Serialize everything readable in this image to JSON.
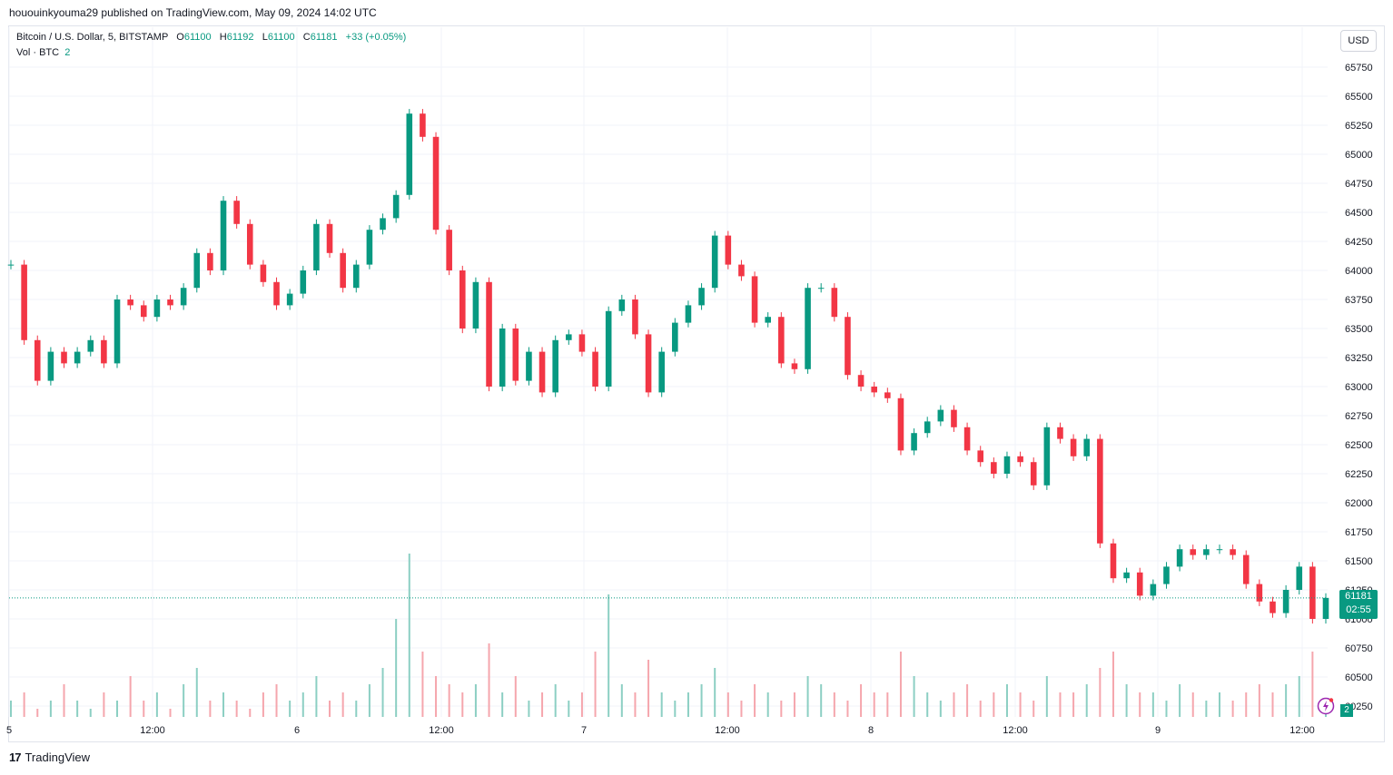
{
  "caption": "hououinkyouma29 published on TradingView.com, May 09, 2024 14:02 UTC",
  "legend": {
    "symbol": "Bitcoin / U.S. Dollar, 5, BITSTAMP",
    "o_label": "O",
    "o_value": "61100",
    "h_label": "H",
    "h_value": "61192",
    "l_label": "L",
    "l_value": "61100",
    "c_label": "C",
    "c_value": "61181",
    "change": "+33 (+0.05%)",
    "vol_label": "Vol · BTC",
    "vol_value": "2"
  },
  "currency_button": "USD",
  "last_price_tag": {
    "price": "61181",
    "countdown": "02:55"
  },
  "volume_tag": "2",
  "brand": {
    "logo": "17",
    "name": "TradingView"
  },
  "colors": {
    "up": "#089981",
    "down": "#f23645",
    "grid": "#f0f3fa",
    "text": "#131722"
  },
  "chart_data": {
    "type": "line",
    "y_ticks": [
      60250,
      60500,
      60750,
      61000,
      61250,
      61500,
      61750,
      62000,
      62250,
      62500,
      62750,
      63000,
      63250,
      63500,
      63750,
      64000,
      64250,
      64500,
      64750,
      65000,
      65250,
      65500,
      65750
    ],
    "y_tick_labels": [
      "60250",
      "60500",
      "60750",
      "61000",
      "61250",
      "61500",
      "61750",
      "62000",
      "62250",
      "62500",
      "62750",
      "63000",
      "63250",
      "63500",
      "63750",
      "64000",
      "64250",
      "64500",
      "64750",
      "65000",
      "65250",
      "65500",
      "65750"
    ],
    "x_tick_labels": [
      "5",
      "12:00",
      "6",
      "12:00",
      "7",
      "12:00",
      "8",
      "12:00",
      "9",
      "12:00"
    ],
    "ylim": [
      60150,
      65850
    ],
    "last_price": 61181,
    "series": [
      {
        "values": [
          64050,
          63400,
          63050,
          63300,
          63200,
          63300,
          63400,
          63200,
          63750,
          63700,
          63600,
          63750,
          63700,
          63850,
          64150,
          64000,
          64600,
          64400,
          64050,
          63900,
          63700,
          63800,
          64000,
          64400,
          64150,
          63850,
          64050,
          64350,
          64450,
          64650,
          65350,
          65150,
          64350,
          64000,
          63500,
          63900,
          63000,
          63500,
          63050,
          63300,
          62950,
          63400,
          63450,
          63300,
          63000,
          63650,
          63750,
          63450,
          62950,
          63300,
          63550,
          63700,
          63850,
          64300,
          64050,
          63950,
          63550,
          63600,
          63200,
          63150,
          63850,
          63850,
          63600,
          63100,
          63000,
          62950,
          62900,
          62450,
          62600,
          62700,
          62800,
          62650,
          62450,
          62350,
          62250,
          62400,
          62350,
          62150,
          62650,
          62550,
          62400,
          62550,
          61650,
          61350,
          61400,
          61200,
          61300,
          61450,
          61600,
          61550,
          61600,
          61600,
          61550,
          61300,
          61150,
          61050,
          61250,
          61450,
          61000,
          61181
        ]
      }
    ],
    "volume": [
      2,
      3,
      1,
      2,
      4,
      2,
      1,
      3,
      2,
      5,
      2,
      3,
      1,
      4,
      6,
      2,
      3,
      2,
      1,
      3,
      4,
      2,
      3,
      5,
      2,
      3,
      2,
      4,
      6,
      12,
      20,
      8,
      5,
      4,
      3,
      4,
      9,
      3,
      5,
      2,
      3,
      4,
      2,
      3,
      8,
      15,
      4,
      3,
      7,
      3,
      2,
      3,
      4,
      6,
      3,
      2,
      4,
      3,
      2,
      3,
      5,
      4,
      3,
      2,
      4,
      3,
      3,
      8,
      5,
      3,
      2,
      3,
      4,
      2,
      3,
      4,
      3,
      2,
      5,
      3,
      3,
      4,
      6,
      8,
      4,
      3,
      3,
      2,
      4,
      3,
      2,
      3,
      2,
      3,
      4,
      3,
      4,
      5,
      8,
      2
    ]
  }
}
